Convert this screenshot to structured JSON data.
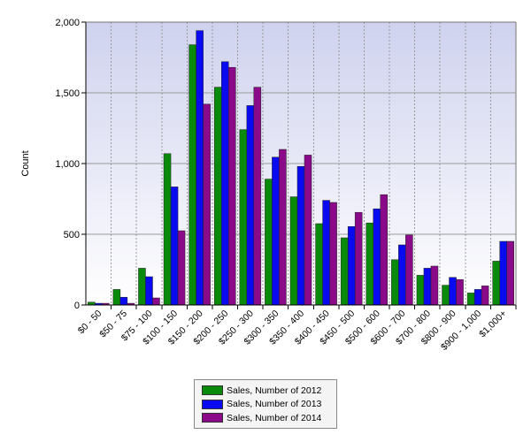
{
  "chart_data": {
    "type": "bar",
    "title": "",
    "xlabel": "",
    "ylabel": "Count",
    "ylim": [
      0,
      2000
    ],
    "yticks": [
      "0",
      "500",
      "1,000",
      "1,500",
      "2,000"
    ],
    "grid": true,
    "legend_position": "bottom-center",
    "categories": [
      "$0 - 50",
      "$50 - 75",
      "$75 - 100",
      "$100 - 150",
      "$150 - 200",
      "$200 - 250",
      "$250 - 300",
      "$300 - 350",
      "$350 - 400",
      "$400 - 450",
      "$450 - 500",
      "$500 - 600",
      "$600 - 700",
      "$700 - 800",
      "$800 - 900",
      "$900 - 1,000",
      "$1,000+"
    ],
    "series": [
      {
        "name": "Sales, Number of 2012",
        "color": "#0a8a0a",
        "values": [
          20,
          110,
          260,
          1070,
          1840,
          1540,
          1240,
          890,
          765,
          575,
          475,
          580,
          320,
          210,
          140,
          85,
          310
        ]
      },
      {
        "name": "Sales, Number of 2013",
        "color": "#0a0af0",
        "values": [
          12,
          55,
          200,
          835,
          1940,
          1720,
          1410,
          1045,
          980,
          740,
          555,
          680,
          425,
          260,
          195,
          110,
          450
        ]
      },
      {
        "name": "Sales, Number of 2014",
        "color": "#8a0a8a",
        "values": [
          12,
          12,
          50,
          525,
          1420,
          1680,
          1540,
          1100,
          1060,
          725,
          655,
          780,
          495,
          275,
          180,
          135,
          450
        ]
      }
    ]
  }
}
